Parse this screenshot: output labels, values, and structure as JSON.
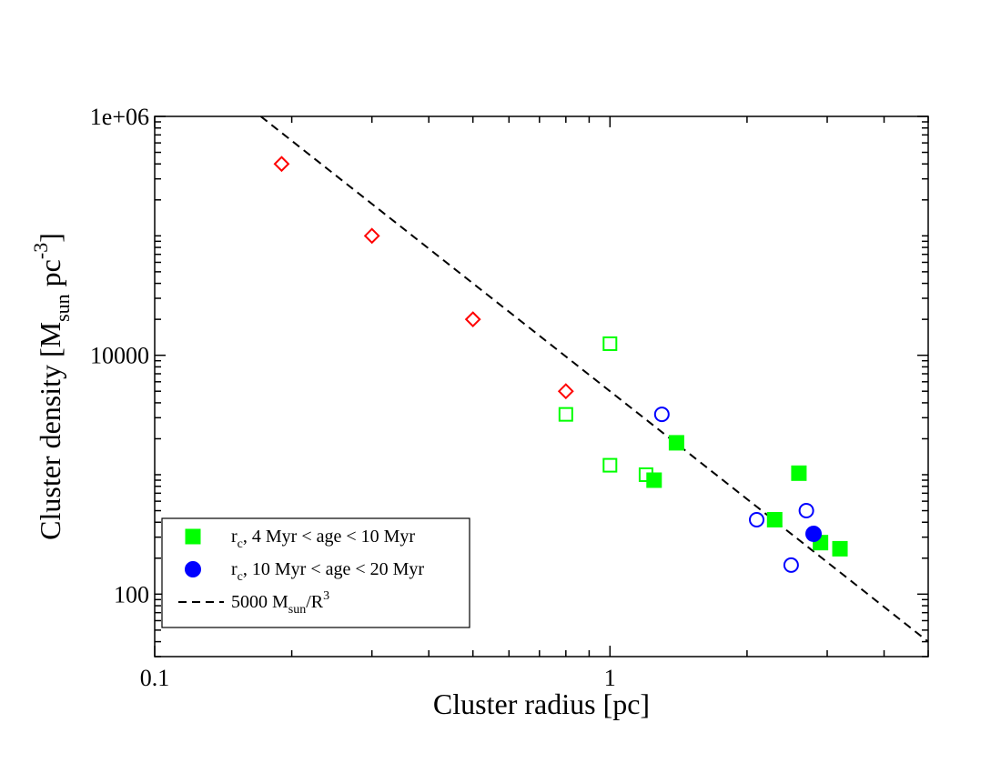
{
  "chart_data": {
    "type": "scatter",
    "xscale": "log",
    "yscale": "log",
    "xlim": [
      0.1,
      5
    ],
    "ylim": [
      30,
      1000000
    ],
    "xlabel": "Cluster radius [pc]",
    "ylabel": {
      "text": "Cluster density [M",
      "sub": "sun",
      "mid": " pc",
      "sup": "-3",
      "end": "]"
    },
    "x_ticks": [
      {
        "value": 0.1,
        "label": "0.1"
      },
      {
        "value": 1,
        "label": "1"
      }
    ],
    "y_ticks": [
      {
        "value": 100,
        "label": "100"
      },
      {
        "value": 10000,
        "label": "10000"
      },
      {
        "value": 1000000,
        "label": "1e+06"
      }
    ],
    "series": [
      {
        "name": "red-open-diamonds",
        "marker": "diamond-open",
        "color": "#ff0000",
        "points": [
          {
            "x": 0.19,
            "y": 400000
          },
          {
            "x": 0.3,
            "y": 100000
          },
          {
            "x": 0.5,
            "y": 20000
          },
          {
            "x": 0.8,
            "y": 5000
          }
        ]
      },
      {
        "name": "green-open-squares",
        "marker": "square-open",
        "color": "#00ff00",
        "points": [
          {
            "x": 1.0,
            "y": 12500
          },
          {
            "x": 0.8,
            "y": 3200
          },
          {
            "x": 1.0,
            "y": 1200
          },
          {
            "x": 1.2,
            "y": 1000
          }
        ]
      },
      {
        "name": "r_c, 4 Myr < age < 10 Myr",
        "marker": "square-filled",
        "color": "#00ff00",
        "points": [
          {
            "x": 1.4,
            "y": 1850
          },
          {
            "x": 1.25,
            "y": 900
          },
          {
            "x": 2.3,
            "y": 420
          },
          {
            "x": 2.6,
            "y": 1030
          },
          {
            "x": 2.9,
            "y": 270
          },
          {
            "x": 3.2,
            "y": 240
          }
        ]
      },
      {
        "name": "blue-open-circles",
        "marker": "circle-open",
        "color": "#0000ff",
        "points": [
          {
            "x": 1.3,
            "y": 3200
          },
          {
            "x": 2.1,
            "y": 420
          },
          {
            "x": 2.7,
            "y": 500
          },
          {
            "x": 2.5,
            "y": 175
          }
        ]
      },
      {
        "name": "r_c, 10 Myr < age < 20 Myr",
        "marker": "circle-filled",
        "color": "#0000ff",
        "points": [
          {
            "x": 2.8,
            "y": 320
          }
        ]
      }
    ],
    "line": {
      "name": "5000 M_sun/R^3",
      "style": "dashed",
      "color": "#000000",
      "coef": 5000,
      "power": -3
    },
    "legend": {
      "placement": "bottom-left",
      "entries": [
        {
          "marker": "square-filled",
          "color": "#00ff00",
          "main": "r",
          "sub": "c",
          "rest": ", 4 Myr < age < 10 Myr"
        },
        {
          "marker": "circle-filled",
          "color": "#0000ff",
          "main": "r",
          "sub": "c",
          "rest": ", 10 Myr < age < 20 Myr"
        },
        {
          "marker": "dashed-line",
          "color": "#000000",
          "main": "5000 M",
          "sub": "sun",
          "rest": "/R",
          "sup": "3"
        }
      ]
    }
  }
}
